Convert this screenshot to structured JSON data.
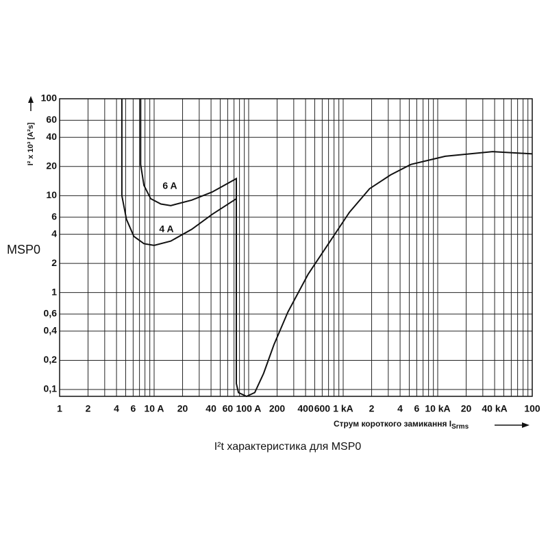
{
  "chart_data": {
    "type": "line",
    "log_x": true,
    "log_y": true,
    "grid": true,
    "side_label": "MSP0",
    "caption": "I²t характеристика для MSP0",
    "y_label": "I² x 10³ [A²s]",
    "x_label": "Струм короткого замикання I",
    "x_label_sub": "Srms",
    "xlim": [
      1,
      100000
    ],
    "ylim": [
      0.085,
      100
    ],
    "xticks": [
      1,
      2,
      4,
      6,
      {
        "value": 10,
        "label": "10 A"
      },
      20,
      40,
      60,
      {
        "value": 100,
        "label": "100 A"
      },
      200,
      400,
      600,
      {
        "value": 1000,
        "label": "1 kA"
      },
      {
        "value": 2000,
        "label": "2"
      },
      {
        "value": 4000,
        "label": "4"
      },
      {
        "value": 6000,
        "label": "6"
      },
      {
        "value": 10000,
        "label": "10 kA"
      },
      {
        "value": 20000,
        "label": "20"
      },
      {
        "value": 40000,
        "label": "40 kA"
      },
      {
        "value": 100000,
        "label": "100"
      }
    ],
    "xgrid": [
      3,
      5,
      7,
      8,
      9,
      30,
      50,
      70,
      80,
      90,
      300,
      500,
      700,
      800,
      900,
      3000,
      5000,
      7000,
      8000,
      9000,
      30000,
      50000,
      60000,
      70000,
      80000,
      90000
    ],
    "yticks": [
      100,
      60,
      40,
      20,
      10,
      6,
      4,
      2,
      1,
      {
        "value": 0.6,
        "label": "0,6"
      },
      {
        "value": 0.4,
        "label": "0,4"
      },
      {
        "value": 0.2,
        "label": "0,2"
      },
      {
        "value": 0.1,
        "label": "0,1"
      }
    ],
    "series": [
      {
        "name": "6 A",
        "color": "#111111",
        "x": [
          7.2,
          7.2,
          7.8,
          9.2,
          11.8,
          15,
          25,
          41,
          74,
          74
        ],
        "values": [
          100,
          21,
          12.8,
          9.3,
          8.2,
          7.9,
          9,
          10.9,
          15,
          0.115
        ]
      },
      {
        "name": "4 A",
        "color": "#111111",
        "x": [
          4.56,
          4.56,
          5.1,
          6.1,
          7.8,
          10,
          15,
          25,
          41,
          74,
          74,
          78,
          95,
          116,
          144,
          185,
          260,
          426,
          700,
          1160,
          1900,
          3180,
          5200,
          12000,
          38000,
          100000
        ],
        "values": [
          100,
          10,
          5.7,
          3.8,
          3.2,
          3.07,
          3.4,
          4.5,
          6.4,
          9.3,
          0.115,
          0.093,
          0.085,
          0.093,
          0.147,
          0.29,
          0.63,
          1.55,
          3.2,
          6.7,
          11.8,
          16.4,
          21,
          25.5,
          28.5,
          27
        ]
      }
    ]
  }
}
